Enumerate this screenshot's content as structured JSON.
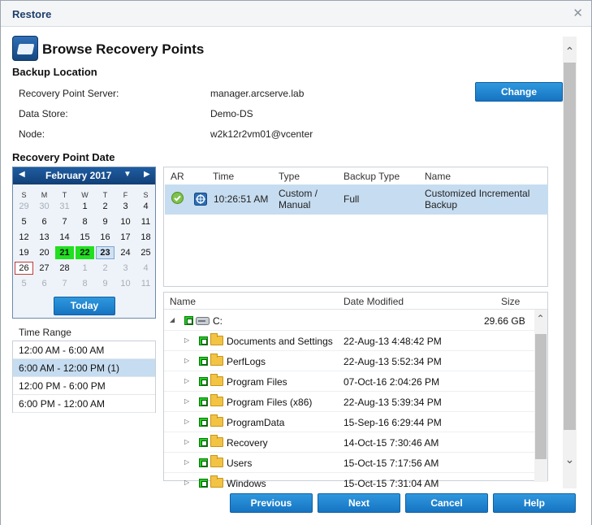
{
  "window": {
    "title": "Restore",
    "close_glyph": "✕"
  },
  "heading": "Browse Recovery Points",
  "backup_location": {
    "section_title": "Backup Location",
    "rows": [
      {
        "label": "Recovery Point Server:",
        "value": "manager.arcserve.lab"
      },
      {
        "label": "Data Store:",
        "value": "Demo-DS"
      },
      {
        "label": "Node:",
        "value": "w2k12r2vm01@vcenter"
      }
    ],
    "change_label": "Change"
  },
  "recovery_point_date": {
    "section_title": "Recovery Point Date",
    "month": "February 2017",
    "prev_glyph": "◀",
    "next_glyph": "▶",
    "menu_glyph": "▼",
    "weekdays": [
      "S",
      "M",
      "T",
      "W",
      "T",
      "F",
      "S"
    ],
    "days": [
      [
        "29",
        "30",
        "31",
        "1",
        "2",
        "3",
        "4"
      ],
      [
        "5",
        "6",
        "7",
        "8",
        "9",
        "10",
        "11"
      ],
      [
        "12",
        "13",
        "14",
        "15",
        "16",
        "17",
        "18"
      ],
      [
        "19",
        "20",
        "21",
        "22",
        "23",
        "24",
        "25"
      ],
      [
        "26",
        "27",
        "28",
        "1",
        "2",
        "3",
        "4"
      ],
      [
        "5",
        "6",
        "7",
        "8",
        "9",
        "10",
        "11"
      ]
    ],
    "today_label": "Today"
  },
  "time_range": {
    "title": "Time Range",
    "items": [
      "12:00 AM - 6:00 AM",
      "6:00 AM - 12:00 PM   (1)",
      "12:00 PM - 6:00 PM",
      "6:00 PM - 12:00 AM"
    ]
  },
  "recovery_points": {
    "columns": [
      "AR",
      "Time",
      "Type",
      "Backup Type",
      "Name"
    ],
    "rows": [
      {
        "time": "10:26:51 AM",
        "type_line1": "Custom /",
        "type_line2": "Manual",
        "backup_type": "Full",
        "name_line1": "Customized Incremental",
        "name_line2": "Backup"
      }
    ]
  },
  "files": {
    "columns": [
      "Name",
      "Date Modified",
      "Size"
    ],
    "root": {
      "name": "C:",
      "size": "29.66 GB"
    },
    "rows": [
      {
        "name": "Documents and Settings",
        "date": "22-Aug-13 4:48:42 PM"
      },
      {
        "name": "PerfLogs",
        "date": "22-Aug-13 5:52:34 PM"
      },
      {
        "name": "Program Files",
        "date": "07-Oct-16 2:04:26 PM"
      },
      {
        "name": "Program Files (x86)",
        "date": "22-Aug-13 5:39:34 PM"
      },
      {
        "name": "ProgramData",
        "date": "15-Sep-16 6:29:44 PM"
      },
      {
        "name": "Recovery",
        "date": "14-Oct-15 7:30:46 AM"
      },
      {
        "name": "Users",
        "date": "15-Oct-15 7:17:56 AM"
      },
      {
        "name": "Windows",
        "date": "15-Oct-15 7:31:04 AM"
      }
    ]
  },
  "footer": {
    "previous": "Previous",
    "next": "Next",
    "cancel": "Cancel",
    "help": "Help"
  },
  "colors": {
    "accent": "#1674c2",
    "selection": "#c6dcf0",
    "recovery_day": "#20e020"
  }
}
